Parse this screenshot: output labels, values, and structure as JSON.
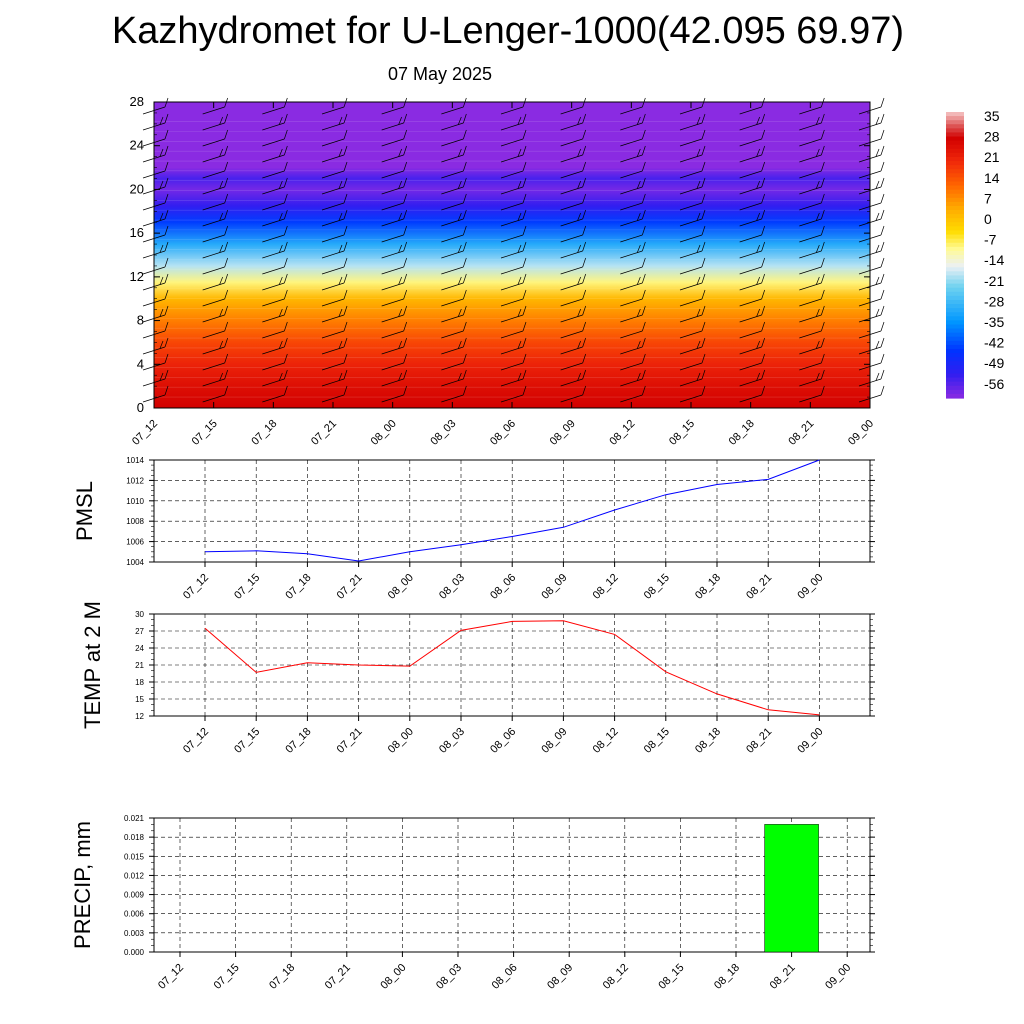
{
  "title": "Kazhydromet for U-Lenger-1000(42.095 69.97)",
  "subtitle": "07 May 2025",
  "time_labels": [
    "07_12",
    "07_15",
    "07_18",
    "07_21",
    "08_00",
    "08_03",
    "08_06",
    "08_09",
    "08_12",
    "08_15",
    "08_18",
    "08_21",
    "09_00"
  ],
  "colors": {
    "pmsl_line": "#0000ff",
    "temp_line": "#ff0000",
    "precip_bar": "#00ff00",
    "grid": "#000000"
  },
  "chart_data": [
    {
      "type": "heatmap",
      "title": "",
      "xlabel": "",
      "ylabel": "",
      "x": [
        "07_12",
        "07_15",
        "07_18",
        "07_21",
        "08_00",
        "08_03",
        "08_06",
        "08_09",
        "08_12",
        "08_15",
        "08_18",
        "08_21",
        "09_00"
      ],
      "ylim": [
        0,
        28
      ],
      "yticks": [
        0,
        4,
        8,
        12,
        16,
        20,
        24,
        28
      ],
      "colorbar_labels": [
        "35",
        "28",
        "21",
        "14",
        "7",
        "0",
        "-7",
        "-14",
        "-21",
        "-28",
        "-35",
        "-42",
        "-49",
        "-56"
      ],
      "colorbar_range": [
        -60,
        38
      ],
      "profile": [
        {
          "y": 0,
          "v": 29
        },
        {
          "y": 2,
          "v": 26
        },
        {
          "y": 4,
          "v": 22
        },
        {
          "y": 6,
          "v": 17
        },
        {
          "y": 8,
          "v": 10
        },
        {
          "y": 10,
          "v": 3
        },
        {
          "y": 11.5,
          "v": -8
        },
        {
          "y": 13,
          "v": -18
        },
        {
          "y": 15,
          "v": -30
        },
        {
          "y": 17,
          "v": -43
        },
        {
          "y": 18.5,
          "v": -52
        },
        {
          "y": 20,
          "v": -58
        },
        {
          "y": 21,
          "v": -54
        },
        {
          "y": 22,
          "v": -60
        },
        {
          "y": 28,
          "v": -60
        }
      ],
      "wind_barbs": "present"
    },
    {
      "type": "line",
      "ylabel": "PMSL",
      "x": [
        "07_12",
        "07_15",
        "07_18",
        "07_21",
        "08_00",
        "08_03",
        "08_06",
        "08_09",
        "08_12",
        "08_15",
        "08_18",
        "08_21",
        "09_00"
      ],
      "series": [
        {
          "values": [
            1005.0,
            1005.1,
            1004.8,
            1004.1,
            1005.0,
            1005.7,
            1006.5,
            1007.4,
            1009.1,
            1010.6,
            1011.6,
            1012.1,
            1014.0
          ]
        }
      ],
      "ylim": [
        1004,
        1014
      ],
      "yticks": [
        "1004",
        "1006",
        "1008",
        "1010",
        "1012",
        "1014"
      ]
    },
    {
      "type": "line",
      "ylabel": "TEMP at 2 M",
      "x": [
        "07_12",
        "07_15",
        "07_18",
        "07_21",
        "08_00",
        "08_03",
        "08_06",
        "08_09",
        "08_12",
        "08_15",
        "08_18",
        "08_21",
        "09_00"
      ],
      "series": [
        {
          "values": [
            27.5,
            19.7,
            21.4,
            21.0,
            20.8,
            27.1,
            28.7,
            28.8,
            26.4,
            19.8,
            15.9,
            13.1,
            12.2
          ]
        }
      ],
      "ylim": [
        12,
        30
      ],
      "yticks": [
        "12",
        "15",
        "18",
        "21",
        "24",
        "27",
        "30"
      ]
    },
    {
      "type": "bar",
      "ylabel": "PRECIP, mm",
      "x": [
        "07_12",
        "07_15",
        "07_18",
        "07_21",
        "08_00",
        "08_03",
        "08_06",
        "08_09",
        "08_12",
        "08_15",
        "08_18",
        "08_21",
        "09_00"
      ],
      "values": [
        0,
        0,
        0,
        0,
        0,
        0,
        0,
        0,
        0,
        0,
        0,
        0.02,
        0
      ],
      "ylim": [
        0,
        0.021
      ],
      "yticks": [
        "0.000",
        "0.003",
        "0.006",
        "0.009",
        "0.012",
        "0.015",
        "0.018",
        "0.021"
      ]
    }
  ]
}
